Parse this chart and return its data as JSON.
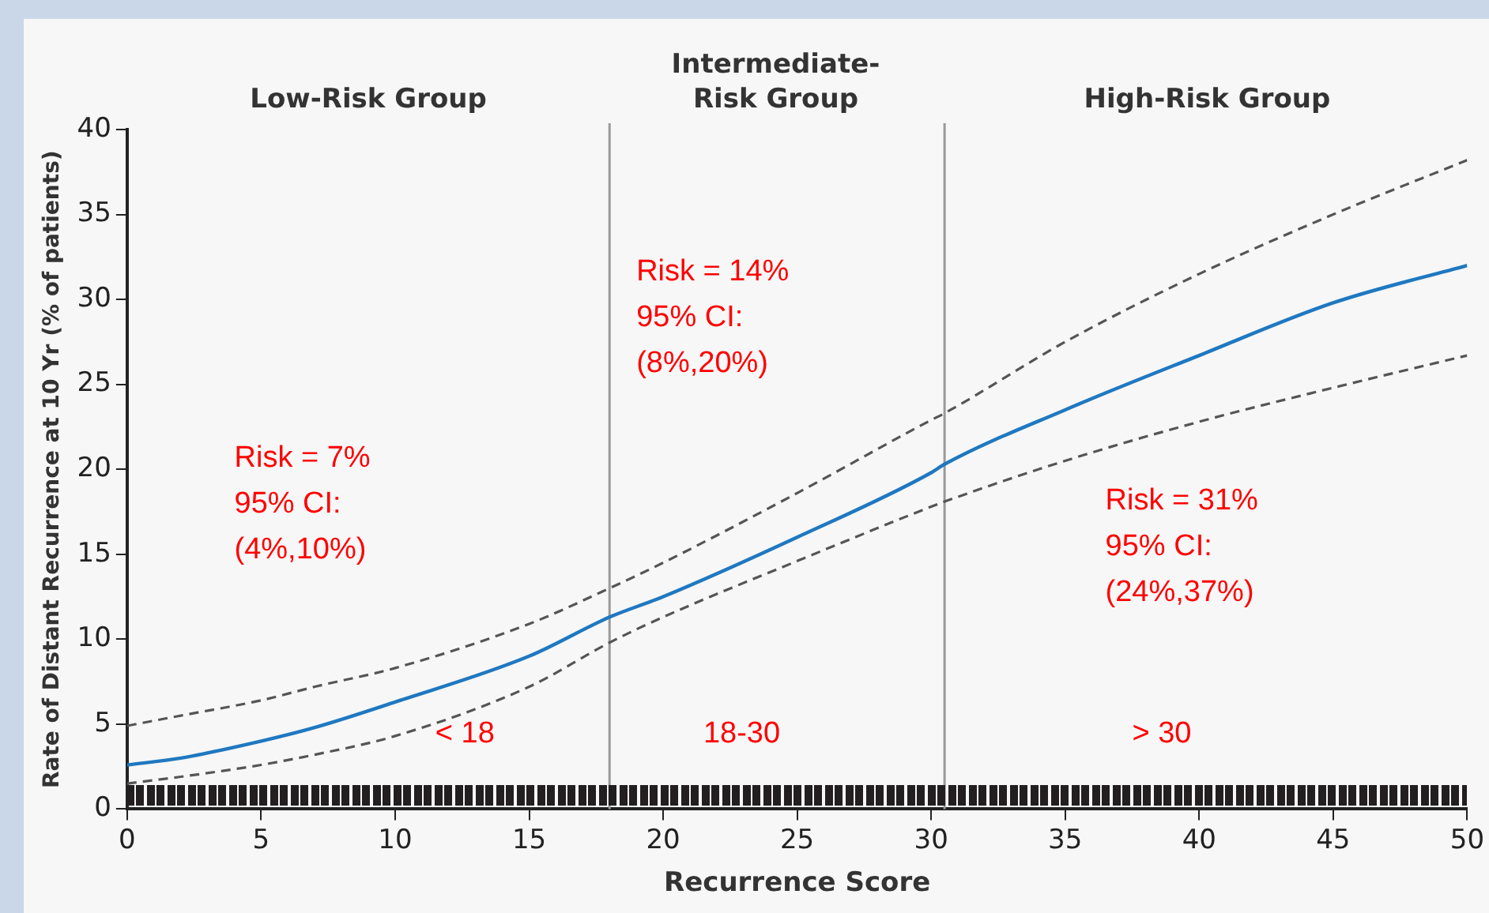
{
  "chart_data": {
    "type": "line",
    "xlabel": "Recurrence Score",
    "ylabel": "Rate of Distant Recurrence at 10 Yr (% of patients)",
    "xlim": [
      0,
      50
    ],
    "xticks": [
      0,
      5,
      10,
      15,
      20,
      25,
      30,
      35,
      40,
      45,
      50
    ],
    "ylim": [
      0,
      40
    ],
    "yticks": [
      0,
      5,
      10,
      15,
      20,
      25,
      30,
      35,
      40
    ],
    "grid": false,
    "legend": false,
    "marker": "none",
    "x": [
      0,
      2,
      5,
      7,
      10,
      15,
      18,
      20,
      25,
      30,
      30.5,
      35,
      40,
      45,
      50
    ],
    "series": [
      {
        "color": "#1f78c1",
        "line_style": "solid",
        "values": [
          2.6,
          3.0,
          4.0,
          4.8,
          6.3,
          9.0,
          11.3,
          12.5,
          16.0,
          19.8,
          20.3,
          23.5,
          26.7,
          29.8,
          32.0
        ]
      },
      {
        "color": "#555555",
        "line_style": "dashed",
        "values": [
          4.9,
          5.5,
          6.4,
          7.2,
          8.3,
          10.9,
          13.0,
          14.5,
          18.6,
          22.9,
          23.3,
          27.5,
          31.5,
          35.0,
          38.2
        ]
      },
      {
        "color": "#555555",
        "line_style": "dashed",
        "values": [
          1.5,
          1.9,
          2.6,
          3.2,
          4.3,
          7.2,
          9.8,
          11.3,
          14.6,
          17.8,
          18.1,
          20.5,
          22.8,
          24.8,
          26.7
        ]
      }
    ],
    "ref_lines": [
      {
        "axis": "x",
        "value": 18,
        "color": "#999999"
      },
      {
        "axis": "x",
        "value": 30.5,
        "color": "#999999"
      }
    ],
    "annotations": [
      "Low-Risk Group",
      "Intermediate-\nRisk Group",
      "High-Risk Group",
      "Risk = 7%\n95% CI:\n(4%,10%)",
      "Risk = 14%\n95% CI:\n(8%,20%)",
      "Risk = 31%\n95% CI:\n(24%,37%)",
      "< 18",
      "18-30",
      "> 30"
    ]
  }
}
